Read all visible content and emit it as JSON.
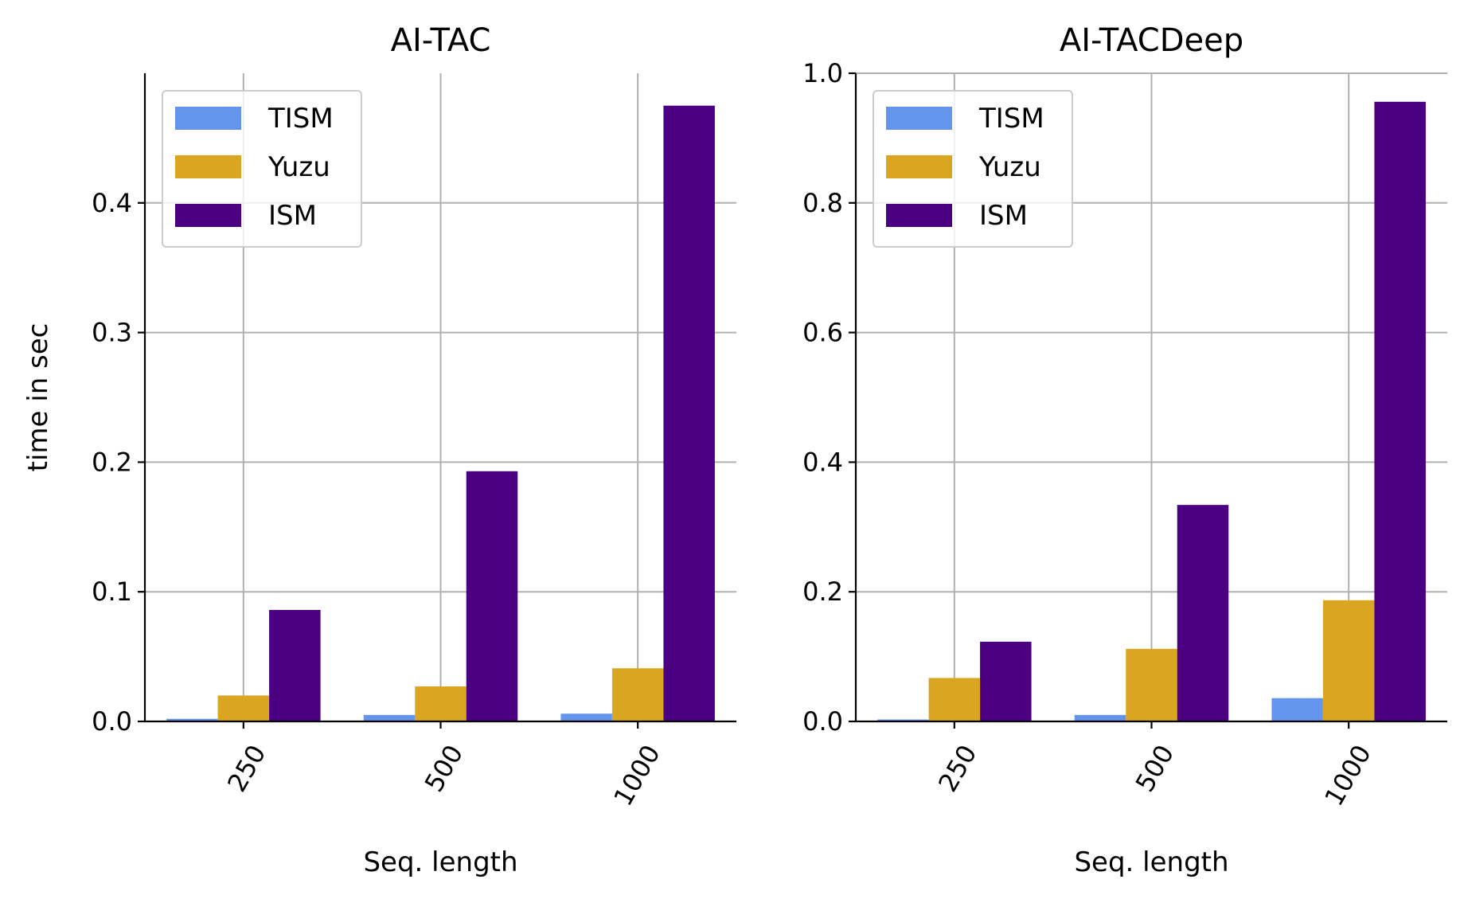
{
  "chart_data": [
    {
      "type": "bar",
      "title": "AI-TAC",
      "xlabel": "Seq. length",
      "ylabel": "time in sec",
      "categories": [
        "250",
        "500",
        "1000"
      ],
      "series": [
        {
          "name": "TISM",
          "color": "#6495ed",
          "values": [
            0.002,
            0.005,
            0.006
          ]
        },
        {
          "name": "Yuzu",
          "color": "#daa520",
          "values": [
            0.02,
            0.027,
            0.041
          ]
        },
        {
          "name": "ISM",
          "color": "#4b0082",
          "values": [
            0.086,
            0.193,
            0.475
          ]
        }
      ],
      "ylim": [
        0,
        0.5
      ],
      "yticks": [
        "0.0",
        "0.1",
        "0.2",
        "0.3",
        "0.4"
      ],
      "grid": true,
      "legend_position": "upper-left"
    },
    {
      "type": "bar",
      "title": "AI-TACDeep",
      "xlabel": "Seq. length",
      "ylabel": "",
      "categories": [
        "250",
        "500",
        "1000"
      ],
      "series": [
        {
          "name": "TISM",
          "color": "#6495ed",
          "values": [
            0.003,
            0.01,
            0.036
          ]
        },
        {
          "name": "Yuzu",
          "color": "#daa520",
          "values": [
            0.067,
            0.112,
            0.187
          ]
        },
        {
          "name": "ISM",
          "color": "#4b0082",
          "values": [
            0.123,
            0.334,
            0.956
          ]
        }
      ],
      "ylim": [
        0,
        1.0
      ],
      "yticks": [
        "0.0",
        "0.2",
        "0.4",
        "0.6",
        "0.8",
        "1.0"
      ],
      "grid": true,
      "legend_position": "upper-left"
    }
  ]
}
